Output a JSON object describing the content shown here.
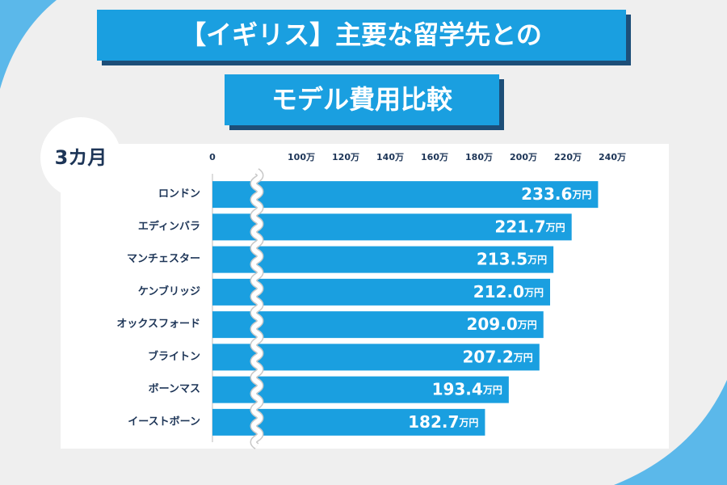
{
  "chart_data": {
    "type": "bar",
    "orientation": "horizontal",
    "title": [
      "【イギリス】主要な留学先との",
      "モデル費用比較"
    ],
    "period_label": "3カ月",
    "categories": [
      "ロンドン",
      "エディンバラ",
      "マンチェスター",
      "ケンブリッジ",
      "オックスフォード",
      "ブライトン",
      "ボーンマス",
      "イーストボーン"
    ],
    "values": [
      233.6,
      221.7,
      213.5,
      212.0,
      209.0,
      207.2,
      193.4,
      182.7
    ],
    "value_labels": [
      "233.6万円",
      "221.7万円",
      "213.5万円",
      "212.0万円",
      "209.0万円",
      "207.2万円",
      "193.4万円",
      "182.7万円"
    ],
    "color": "#1a9fe0",
    "xlim": [
      0,
      240
    ],
    "axis_break": [
      20,
      80
    ],
    "xticks": [
      0,
      {
        "value": 100,
        "label": "100万"
      },
      {
        "value": 120,
        "label": "120万"
      },
      {
        "value": 140,
        "label": "140万"
      },
      {
        "value": 160,
        "label": "160万"
      },
      {
        "value": 180,
        "label": "180万"
      },
      {
        "value": 200,
        "label": "200万"
      },
      {
        "value": 220,
        "label": "220万"
      },
      {
        "value": 240,
        "label": "240万"
      }
    ],
    "grid": false
  }
}
